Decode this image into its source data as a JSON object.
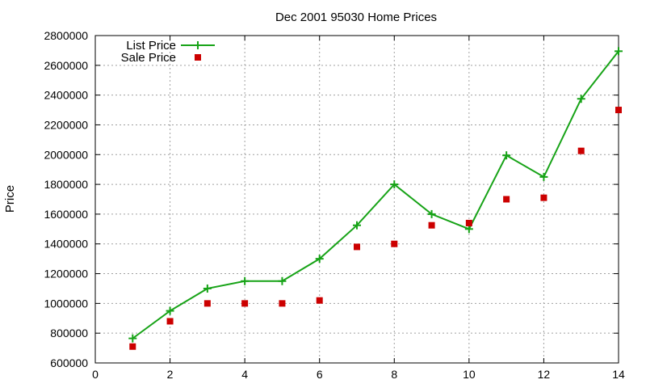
{
  "chart_data": {
    "type": "line",
    "title": "Dec 2001 95030 Home Prices",
    "xlabel": "",
    "ylabel": "Price",
    "xlim": [
      0,
      14
    ],
    "ylim": [
      600000,
      2800000
    ],
    "x_ticks": [
      0,
      2,
      4,
      6,
      8,
      10,
      12,
      14
    ],
    "y_ticks": [
      600000,
      800000,
      1000000,
      1200000,
      1400000,
      1600000,
      1800000,
      2000000,
      2200000,
      2400000,
      2600000,
      2800000
    ],
    "x_tick_labels": [
      "0",
      "2",
      "4",
      "6",
      "8",
      "10",
      "12",
      "14"
    ],
    "y_tick_labels": [
      "600000",
      "800000",
      "1000000",
      "1200000",
      "1400000",
      "1600000",
      "1800000",
      "2000000",
      "2200000",
      "2400000",
      "2600000",
      "2800000"
    ],
    "grid": true,
    "legend_position": "top-left",
    "series": [
      {
        "name": "List Price",
        "style": "linespoints",
        "marker": "plus",
        "color": "#17a317",
        "x": [
          1,
          2,
          3,
          4,
          5,
          6,
          7,
          8,
          9,
          10,
          11,
          12,
          13,
          14
        ],
        "y": [
          765000,
          950000,
          1100000,
          1150000,
          1150000,
          1300000,
          1525000,
          1800000,
          1600000,
          1500000,
          1995000,
          1850000,
          2375000,
          2695000
        ]
      },
      {
        "name": "Sale Price",
        "style": "points",
        "marker": "square",
        "color": "#cc0000",
        "x": [
          1,
          2,
          3,
          4,
          5,
          6,
          7,
          8,
          9,
          10,
          11,
          12,
          13,
          14
        ],
        "y": [
          710000,
          880000,
          1000000,
          1000000,
          1000000,
          1020000,
          1380000,
          1400000,
          1525000,
          1540000,
          1700000,
          1710000,
          2025000,
          2300000
        ]
      }
    ]
  }
}
